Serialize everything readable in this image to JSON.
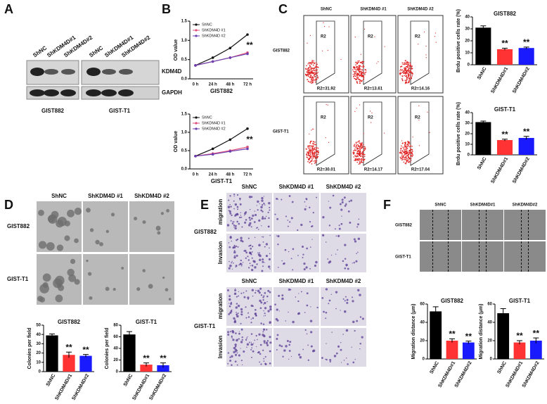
{
  "panels": {
    "A": {
      "label": "A",
      "lanes": [
        "ShNC",
        "ShKDM4D#1",
        "ShKDM4D#2",
        "ShNC",
        "ShKDM4D#1",
        "ShKDM4D#2"
      ],
      "bands": [
        "KDM4D",
        "GAPDH"
      ],
      "cell_lines": [
        "GIST882",
        "GIST-T1"
      ]
    },
    "B": {
      "label": "B"
    },
    "C": {
      "label": "C",
      "columns": [
        "ShNC",
        "ShKDM4D #1",
        "ShKDM4D #2"
      ],
      "rows": [
        "GIST882",
        "GIST-T1"
      ],
      "gates": [
        [
          "R2",
          "R2",
          "R2"
        ],
        [
          "R2",
          "R2",
          "R2"
        ]
      ],
      "rates": [
        [
          "R2=31.92",
          "R2=13.61",
          "R2=14.16"
        ],
        [
          "R2=30.01",
          "R2=14.17",
          "R2=17.04"
        ]
      ]
    },
    "D": {
      "label": "D",
      "columns": [
        "ShNC",
        "ShKDM4D #1",
        "ShKDM4D #2"
      ],
      "rows": [
        "GIST882",
        "GIST-T1"
      ]
    },
    "E": {
      "label": "E",
      "blocks": [
        {
          "columns": [
            "ShNC",
            "ShKDM4D #1",
            "ShKDM4D #2"
          ],
          "cell_line": "GIST882",
          "rows": [
            "migration",
            "Invasion"
          ]
        },
        {
          "columns": [
            "ShNC",
            "ShKDM4D #1",
            "ShKDM4D #2"
          ],
          "cell_line": "GIST-T1",
          "rows": [
            "migration",
            "Invasion"
          ]
        }
      ]
    },
    "F": {
      "label": "F",
      "columns": [
        "ShNC",
        "ShKDM4D#1",
        "ShKDM4D#2"
      ],
      "rows": [
        "GIST882",
        "GIST-T1"
      ]
    }
  },
  "chart_data": [
    {
      "type": "line",
      "title": "GIST882",
      "y_label": "OD value",
      "categories": [
        "0 h",
        "24 h",
        "48 h",
        "72 h"
      ],
      "series": [
        {
          "name": "ShNC",
          "color": "#111111",
          "values": [
            0.35,
            0.55,
            0.8,
            1.15
          ]
        },
        {
          "name": "ShKDM4D #1",
          "color": "#e0507a",
          "values": [
            0.35,
            0.45,
            0.55,
            0.68
          ]
        },
        {
          "name": "ShKDM4D #2",
          "color": "#6a3fb0",
          "values": [
            0.35,
            0.45,
            0.55,
            0.65
          ]
        }
      ],
      "ylim": [
        0,
        1.5
      ],
      "yticks": [
        {
          "value": 0,
          "label": "0.0"
        },
        {
          "value": 0.5,
          "label": "0.5"
        },
        {
          "value": 1,
          "label": "1.0"
        },
        {
          "value": 1.5,
          "label": "1.5"
        }
      ],
      "annotation": "**"
    },
    {
      "type": "line",
      "title": "GIST-T1",
      "y_label": "OD value",
      "categories": [
        "0 h",
        "24 h",
        "48 h",
        "72 h"
      ],
      "series": [
        {
          "name": "ShNC",
          "color": "#111111",
          "values": [
            0.35,
            0.55,
            0.8,
            1.1
          ]
        },
        {
          "name": "ShKDM4D #1",
          "color": "#e0507a",
          "values": [
            0.35,
            0.42,
            0.5,
            0.6
          ]
        },
        {
          "name": "ShKDM4D #2",
          "color": "#6a3fb0",
          "values": [
            0.35,
            0.4,
            0.48,
            0.55
          ]
        }
      ],
      "ylim": [
        0,
        1.5
      ],
      "yticks": [
        {
          "value": 0,
          "label": "0.0"
        },
        {
          "value": 0.5,
          "label": "0.5"
        },
        {
          "value": 1,
          "label": "1.0"
        },
        {
          "value": 1.5,
          "label": "1.5"
        }
      ],
      "annotation": "**"
    },
    {
      "type": "bar",
      "title": "GIST882",
      "y_label": "Brdu positive cells rate (%)",
      "categories": [
        "ShNC",
        "ShKDM4D#1",
        "ShKDM4D#2"
      ],
      "values": [
        31,
        13,
        14
      ],
      "errors": [
        1.5,
        0.8,
        0.8
      ],
      "colors": [
        "#000000",
        "#ff3333",
        "#1a1aff"
      ],
      "significance": [
        null,
        "**",
        "**"
      ],
      "ylim": [
        0,
        40
      ],
      "yticks": [
        0,
        10,
        20,
        30,
        40
      ]
    },
    {
      "type": "bar",
      "title": "GIST-T1",
      "y_label": "Brdu positive cells rate (%)",
      "categories": [
        "ShNC",
        "ShKDM4D#1",
        "ShKDM4D#2"
      ],
      "values": [
        31,
        14,
        16
      ],
      "errors": [
        1,
        0.8,
        1.5
      ],
      "colors": [
        "#000000",
        "#ff3333",
        "#1a1aff"
      ],
      "significance": [
        null,
        "**",
        "**"
      ],
      "ylim": [
        0,
        40
      ],
      "yticks": [
        0,
        10,
        20,
        30,
        40
      ]
    },
    {
      "type": "bar",
      "title": "GIST882",
      "y_label": "Colonies per field",
      "categories": [
        "ShNC",
        "ShKDM4D#1",
        "ShKDM4D#2"
      ],
      "values": [
        39,
        18,
        17
      ],
      "errors": [
        1.5,
        3,
        1.5
      ],
      "colors": [
        "#000000",
        "#ff3333",
        "#1a1aff"
      ],
      "significance": [
        null,
        "**",
        "**"
      ],
      "ylim": [
        0,
        50
      ],
      "yticks": [
        0,
        10,
        20,
        30,
        40,
        50
      ]
    },
    {
      "type": "bar",
      "title": "GIST-T1",
      "y_label": "Colonies per field",
      "categories": [
        "ShNC",
        "ShKDM4D#1",
        "ShKDM4D#2"
      ],
      "values": [
        64,
        12,
        11
      ],
      "errors": [
        5,
        3,
        4
      ],
      "colors": [
        "#000000",
        "#ff3333",
        "#1a1aff"
      ],
      "significance": [
        null,
        "**",
        "**"
      ],
      "ylim": [
        0,
        80
      ],
      "yticks": [
        0,
        20,
        40,
        60,
        80
      ]
    },
    {
      "type": "bar",
      "title": "GIST882",
      "y_label": "Migration distance (μm)",
      "categories": [
        "ShNC",
        "ShKDM4D#1",
        "ShKDM4D#2"
      ],
      "values": [
        52,
        20,
        18
      ],
      "errors": [
        5,
        2,
        1.5
      ],
      "colors": [
        "#000000",
        "#ff3333",
        "#1a1aff"
      ],
      "significance": [
        null,
        "**",
        "**"
      ],
      "ylim": [
        0,
        60
      ],
      "yticks": [
        0,
        20,
        40,
        60
      ]
    },
    {
      "type": "bar",
      "title": "GIST-T1",
      "y_label": "Migration distance (μm)",
      "categories": [
        "ShNC",
        "ShKDM4D#1",
        "ShKDM4D#2"
      ],
      "values": [
        50,
        18,
        20
      ],
      "errors": [
        5,
        2,
        3
      ],
      "colors": [
        "#000000",
        "#ff3333",
        "#1a1aff"
      ],
      "significance": [
        null,
        "**",
        "**"
      ],
      "ylim": [
        0,
        60
      ],
      "yticks": [
        0,
        20,
        40,
        60
      ]
    }
  ]
}
